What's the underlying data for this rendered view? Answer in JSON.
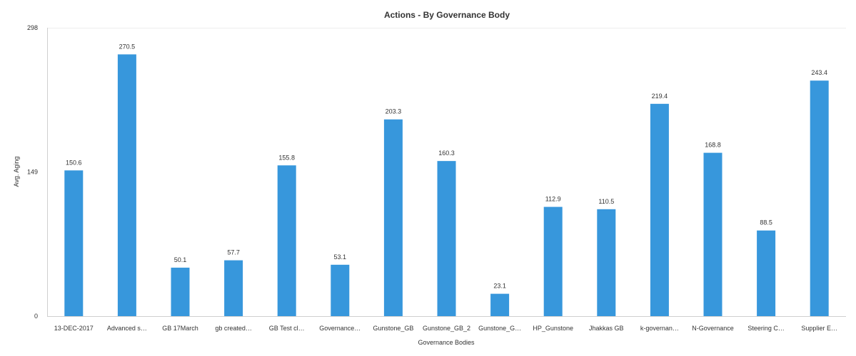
{
  "chart_data": {
    "type": "bar",
    "title": "Actions - By Governance Body",
    "xlabel": "Governance Bodies",
    "ylabel": "Avg. Aging",
    "ylim": [
      0,
      298
    ],
    "yticks": [
      "0",
      "149",
      "298"
    ],
    "grid": false,
    "legend": "none",
    "bar_color": "#3797dc",
    "categories": [
      "13-DEC-2017",
      "Advanced s…",
      "GB 17March",
      "gb created…",
      "GB Test cl…",
      "Governance…",
      "Gunstone_GB",
      "Gunstone_GB_2",
      "Gunstone_G…",
      "HP_Gunstone",
      "Jhakkas GB",
      "k-governan…",
      "N-Governance",
      "Steering C…",
      "Supplier E…"
    ],
    "values": [
      150.6,
      270.5,
      50.1,
      57.7,
      155.8,
      53.1,
      203.3,
      160.3,
      23.1,
      112.9,
      110.5,
      219.4,
      168.8,
      88.5,
      243.4
    ],
    "value_labels": [
      "150.6",
      "270.5",
      "50.1",
      "57.7",
      "155.8",
      "53.1",
      "203.3",
      "160.3",
      "23.1",
      "112.9",
      "110.5",
      "219.4",
      "168.8",
      "88.5",
      "243.4"
    ]
  }
}
